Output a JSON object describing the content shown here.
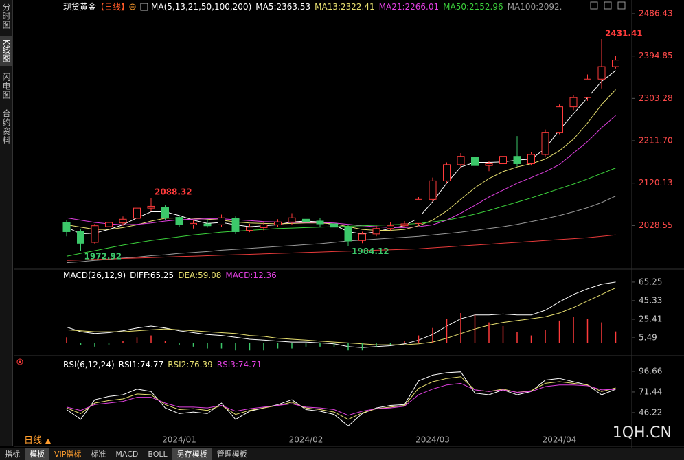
{
  "sidebar_tabs": [
    "分时图",
    "K线图",
    "闪电图",
    "合约资料"
  ],
  "sidebar_selected": 1,
  "chart_data": [
    {
      "type": "candlestick",
      "title": "现货黄金",
      "period": "【日线】",
      "indicator": "MA(5,13,21,50,100,200)",
      "categories": [
        null,
        null,
        null,
        null,
        null,
        null,
        null,
        null,
        "2024/01",
        null,
        null,
        null,
        null,
        null,
        null,
        null,
        null,
        "2024/02",
        null,
        null,
        null,
        null,
        null,
        null,
        null,
        null,
        "2024/03",
        null,
        null,
        null,
        null,
        null,
        null,
        null,
        null,
        "2024/04",
        null,
        null,
        null,
        null
      ],
      "open": [
        2035,
        2015,
        1992,
        2026,
        2034,
        2044,
        2066,
        2068,
        2046,
        2030,
        2032,
        2030,
        2044,
        2018,
        2024,
        2030,
        2036,
        2042,
        2038,
        2032,
        2024,
        1996,
        2010,
        2022,
        2028,
        2033,
        2085,
        2125,
        2160,
        2176,
        2158,
        2162,
        2178,
        2162,
        2182,
        2230,
        2285,
        2305,
        2345,
        2372
      ],
      "high": [
        2040,
        2020,
        2032,
        2041,
        2048,
        2072,
        2088.32,
        2072,
        2050,
        2040,
        2042,
        2052,
        2048,
        2032,
        2036,
        2042,
        2055,
        2048,
        2044,
        2036,
        2030,
        2015,
        2028,
        2035,
        2038,
        2090,
        2132,
        2165,
        2185,
        2182,
        2168,
        2184,
        2222,
        2188,
        2236,
        2290,
        2310,
        2355,
        2431.41,
        2395
      ],
      "low": [
        2005,
        1972.92,
        1988,
        2020,
        2028,
        2040,
        2060,
        2040,
        2025,
        2022,
        2024,
        2026,
        2010,
        2014,
        2018,
        2025,
        2030,
        2030,
        2026,
        2020,
        1984.12,
        1990,
        2005,
        2018,
        2024,
        2028,
        2080,
        2120,
        2152,
        2150,
        2146,
        2155,
        2156,
        2158,
        2178,
        2226,
        2278,
        2298,
        2325,
        2368
      ],
      "close": [
        2015,
        1990,
        2028,
        2035,
        2042,
        2066,
        2070,
        2045,
        2030,
        2033,
        2028,
        2045,
        2015,
        2025,
        2030,
        2036,
        2045,
        2036,
        2032,
        2025,
        1995,
        2010,
        2022,
        2028,
        2032,
        2085,
        2125,
        2160,
        2178,
        2158,
        2162,
        2178,
        2162,
        2182,
        2230,
        2285,
        2305,
        2345,
        2372,
        2386
      ],
      "up_color": "#ff3b3b",
      "down_color": "#3cc86a",
      "series": [
        {
          "name": "MA5:2363.53",
          "color": "#ffffff",
          "values": [
            2025,
            2010,
            2012,
            2020,
            2030,
            2045,
            2058,
            2058,
            2050,
            2040,
            2033,
            2035,
            2030,
            2026,
            2028,
            2030,
            2036,
            2038,
            2036,
            2030,
            2015,
            2010,
            2015,
            2022,
            2028,
            2045,
            2080,
            2120,
            2155,
            2165,
            2165,
            2166,
            2170,
            2172,
            2195,
            2235,
            2270,
            2305,
            2340,
            2363.53
          ]
        },
        {
          "name": "MA13:2322.41",
          "color": "#e8e070",
          "values": [
            2030,
            2025,
            2020,
            2020,
            2024,
            2030,
            2038,
            2044,
            2045,
            2044,
            2042,
            2040,
            2036,
            2034,
            2033,
            2032,
            2033,
            2034,
            2034,
            2032,
            2026,
            2020,
            2018,
            2018,
            2020,
            2028,
            2040,
            2060,
            2085,
            2110,
            2130,
            2145,
            2155,
            2162,
            2172,
            2190,
            2215,
            2250,
            2290,
            2322.41
          ]
        },
        {
          "name": "MA21:2266.01",
          "color": "#e040e0",
          "values": [
            2045,
            2040,
            2035,
            2032,
            2030,
            2031,
            2034,
            2038,
            2041,
            2042,
            2043,
            2043,
            2041,
            2039,
            2037,
            2036,
            2035,
            2035,
            2035,
            2034,
            2031,
            2028,
            2026,
            2024,
            2024,
            2026,
            2030,
            2040,
            2055,
            2072,
            2090,
            2105,
            2120,
            2132,
            2145,
            2160,
            2185,
            2210,
            2240,
            2266.01
          ]
        },
        {
          "name": "MA50:2152.96",
          "color": "#3cd23c",
          "values": [
            1962,
            1968,
            1974,
            1980,
            1986,
            1991,
            1996,
            2000,
            2004,
            2008,
            2011,
            2014,
            2016,
            2018,
            2020,
            2022,
            2023,
            2024,
            2025,
            2026,
            2027,
            2028,
            2029,
            2030,
            2031,
            2033,
            2036,
            2040,
            2046,
            2053,
            2061,
            2070,
            2079,
            2088,
            2098,
            2108,
            2118,
            2129,
            2141,
            2152.96
          ]
        },
        {
          "name": "MA100:2092.",
          "color": "#9a9a9a",
          "values": [
            1948,
            1950,
            1953,
            1955,
            1958,
            1960,
            1963,
            1965,
            1968,
            1970,
            1972,
            1975,
            1977,
            1979,
            1981,
            1983,
            1985,
            1987,
            1989,
            1992,
            1995,
            1997,
            1999,
            2001,
            2003,
            2005,
            2008,
            2011,
            2014,
            2018,
            2022,
            2026,
            2031,
            2037,
            2043,
            2050,
            2058,
            2067,
            2078,
            2092
          ]
        },
        {
          "color": "#e83a3a",
          "values": [
            1953,
            1954,
            1955,
            1956,
            1957,
            1958,
            1959,
            1960,
            1961,
            1962,
            1963,
            1964,
            1965,
            1966,
            1967,
            1968,
            1969,
            1970,
            1971,
            1972,
            1973,
            1974,
            1975,
            1976,
            1977,
            1978,
            1980,
            1982,
            1984,
            1986,
            1988,
            1990,
            1992,
            1994,
            1996,
            1998,
            2000,
            2002,
            2005,
            2008
          ]
        }
      ],
      "annotations": [
        {
          "index": 38,
          "value": 2431.41,
          "side": "above",
          "color": "#ff3b3b"
        },
        {
          "index": 6,
          "value": 2088.32,
          "side": "above",
          "color": "#ff3b3b"
        },
        {
          "index": 1,
          "value": 1972.92,
          "side": "below",
          "color": "#3cc86a"
        },
        {
          "index": 20,
          "value": 1984.12,
          "side": "below",
          "color": "#3cc86a"
        }
      ],
      "ylim": [
        1937,
        2486.43
      ],
      "yticks": [
        2028.55,
        2120.13,
        {
          "value": 2211.7,
          "label": "2211.70"
        },
        2303.28,
        2394.85,
        2486.43
      ],
      "tick_color": "#ff4a4a"
    },
    {
      "type": "line",
      "title": "MACD(26,12,9)",
      "series": [
        {
          "name": "DIFF:65.25",
          "color": "#ffffff",
          "values": [
            17,
            12,
            10,
            11,
            13,
            16,
            18,
            16,
            13,
            11,
            9,
            8,
            6,
            4,
            3,
            2,
            1,
            1,
            0,
            -1,
            -4,
            -5,
            -4,
            -3,
            -1,
            3,
            9,
            18,
            26,
            30,
            30,
            31,
            30,
            30,
            35,
            44,
            52,
            58,
            63,
            65.25
          ]
        },
        {
          "name": "DEA:59.08",
          "color": "#e8e070",
          "values": [
            14,
            13,
            12,
            12,
            12,
            13,
            14,
            15,
            14,
            13,
            12,
            11,
            10,
            8,
            7,
            5,
            4,
            3,
            2,
            1,
            0,
            -1,
            -2,
            -2,
            -2,
            -1,
            1,
            5,
            10,
            15,
            19,
            22,
            24,
            26,
            28,
            32,
            38,
            45,
            52,
            59.08
          ]
        },
        {
          "name": "MACD:12.36",
          "color": "#e040e0",
          "draw": "bars",
          "up_color": "#ff3b3b",
          "down_color": "#3cc86a",
          "values": [
            6,
            -2,
            -4,
            -2,
            2,
            6,
            8,
            2,
            -2,
            -4,
            -6,
            -6,
            -8,
            -8,
            -8,
            -6,
            -6,
            -4,
            -4,
            -4,
            -8,
            -8,
            -4,
            -2,
            2,
            8,
            16,
            26,
            32,
            30,
            22,
            18,
            12,
            8,
            14,
            24,
            28,
            26,
            22,
            12.36
          ]
        }
      ],
      "ylim": [
        -11.5,
        77
      ],
      "yticks": [
        5.49,
        25.41,
        45.33,
        65.25
      ],
      "tick_color": "#c8c8c8"
    },
    {
      "type": "line",
      "title": "RSI(6,12,24)",
      "series": [
        {
          "name": "RSI1:74.77",
          "color": "#ffffff",
          "values": [
            50,
            38,
            62,
            66,
            68,
            75,
            72,
            52,
            45,
            47,
            45,
            58,
            38,
            48,
            52,
            56,
            62,
            50,
            48,
            44,
            30,
            45,
            52,
            55,
            56,
            85,
            92,
            95,
            96,
            70,
            68,
            74,
            68,
            72,
            86,
            88,
            84,
            80,
            68,
            74.77
          ]
        },
        {
          "name": "RSI2:76.39",
          "color": "#e8e070",
          "values": [
            52,
            45,
            58,
            61,
            63,
            69,
            68,
            56,
            50,
            51,
            49,
            55,
            44,
            49,
            52,
            55,
            59,
            52,
            50,
            47,
            38,
            46,
            51,
            53,
            55,
            76,
            84,
            88,
            90,
            74,
            72,
            75,
            71,
            73,
            82,
            84,
            82,
            80,
            72,
            76.39
          ]
        },
        {
          "name": "RSI3:74.71",
          "color": "#e040e0",
          "values": [
            53,
            49,
            56,
            58,
            60,
            65,
            65,
            58,
            53,
            53,
            52,
            55,
            48,
            51,
            53,
            55,
            57,
            53,
            52,
            50,
            43,
            48,
            51,
            52,
            54,
            68,
            75,
            80,
            82,
            74,
            72,
            74,
            71,
            72,
            78,
            80,
            80,
            79,
            74,
            74.71
          ]
        }
      ],
      "ylim": [
        16,
        110
      ],
      "yticks": [
        46.22,
        71.44,
        96.66
      ],
      "tick_color": "#c8c8c8"
    }
  ],
  "period_button": "日线",
  "watermark": "1QH.CN",
  "toolbar_tabs": [
    "指标",
    "模板",
    "VIP指标",
    "标准",
    "MACD",
    "BOLL",
    "另存模板",
    "管理模板"
  ],
  "toolbar_selected": [
    1,
    6
  ]
}
